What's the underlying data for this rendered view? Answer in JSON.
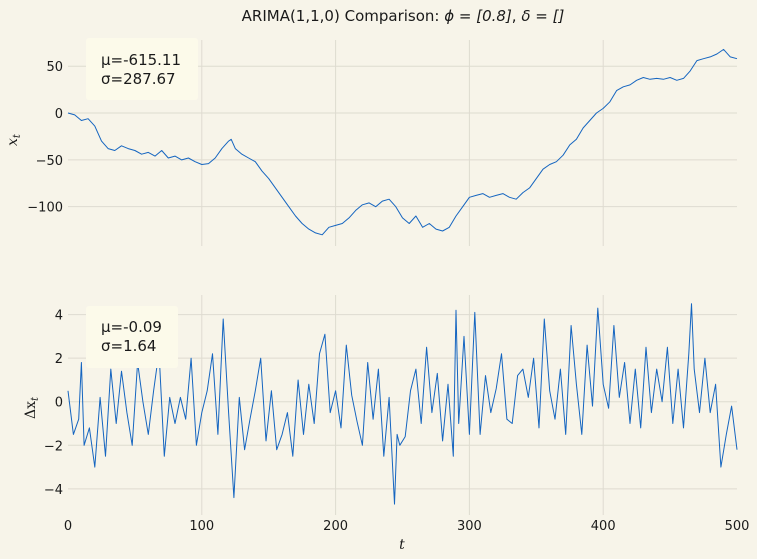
{
  "chart_data": [
    {
      "type": "line",
      "title_prefix": "ARIMA(1,1,0) Comparison: ",
      "title_phi": "ϕ = [0.8]",
      "title_sep": ", ",
      "title_delta": "δ = []",
      "ylabel_main": "x",
      "ylabel_sub": "t",
      "xlim": [
        0,
        500
      ],
      "ylim": [
        -142,
        78
      ],
      "yticks": [
        50,
        0,
        -50,
        -100
      ],
      "ytick_labels": [
        "50",
        "0",
        "−50",
        "−100"
      ],
      "grid": true,
      "stats_mean": "μ=-615.11",
      "stats_sd": "σ=287.67",
      "series": [
        {
          "color": "#1565c0",
          "x": [
            0,
            5,
            10,
            15,
            20,
            25,
            30,
            35,
            40,
            45,
            50,
            55,
            60,
            65,
            70,
            75,
            80,
            85,
            90,
            95,
            100,
            105,
            110,
            115,
            120,
            122,
            125,
            130,
            135,
            140,
            145,
            150,
            155,
            160,
            165,
            170,
            175,
            180,
            185,
            190,
            195,
            200,
            205,
            210,
            215,
            220,
            225,
            230,
            235,
            240,
            245,
            250,
            255,
            260,
            265,
            270,
            275,
            280,
            285,
            290,
            295,
            300,
            305,
            310,
            315,
            320,
            325,
            330,
            335,
            340,
            345,
            350,
            355,
            360,
            365,
            370,
            375,
            380,
            385,
            390,
            395,
            400,
            405,
            410,
            415,
            420,
            425,
            430,
            435,
            440,
            445,
            450,
            455,
            460,
            465,
            470,
            475,
            480,
            485,
            490,
            495,
            500
          ],
          "y": [
            0,
            -2,
            -8,
            -6,
            -14,
            -30,
            -38,
            -40,
            -35,
            -38,
            -40,
            -44,
            -42,
            -46,
            -40,
            -48,
            -46,
            -50,
            -48,
            -52,
            -55,
            -54,
            -48,
            -38,
            -30,
            -28,
            -38,
            -44,
            -48,
            -52,
            -62,
            -70,
            -80,
            -90,
            -100,
            -110,
            -118,
            -124,
            -128,
            -130,
            -122,
            -120,
            -118,
            -112,
            -104,
            -98,
            -96,
            -100,
            -94,
            -92,
            -100,
            -112,
            -118,
            -110,
            -122,
            -118,
            -124,
            -126,
            -122,
            -110,
            -100,
            -90,
            -88,
            -86,
            -90,
            -88,
            -86,
            -90,
            -92,
            -85,
            -80,
            -70,
            -60,
            -55,
            -52,
            -45,
            -34,
            -28,
            -16,
            -8,
            0,
            5,
            12,
            24,
            28,
            30,
            35,
            38,
            36,
            37,
            36,
            38,
            35,
            37,
            45,
            56,
            58,
            60,
            63,
            68,
            60,
            58
          ]
        }
      ]
    },
    {
      "type": "line",
      "xlabel": "t",
      "ylabel_prefix": "Δx",
      "ylabel_sub": "t",
      "xlim": [
        0,
        500
      ],
      "ylim": [
        -5.2,
        4.9
      ],
      "xticks": [
        0,
        100,
        200,
        300,
        400,
        500
      ],
      "xtick_labels": [
        "0",
        "100",
        "200",
        "300",
        "400",
        "500"
      ],
      "yticks": [
        4,
        2,
        0,
        -2,
        -4
      ],
      "ytick_labels": [
        "4",
        "2",
        "0",
        "−2",
        "−4"
      ],
      "grid": true,
      "stats_mean": "μ=-0.09",
      "stats_sd": "σ=1.64",
      "series": [
        {
          "color": "#1565c0",
          "x": [
            0,
            4,
            8,
            10,
            12,
            16,
            20,
            24,
            28,
            32,
            36,
            40,
            44,
            48,
            52,
            56,
            60,
            64,
            68,
            72,
            76,
            80,
            84,
            88,
            92,
            96,
            100,
            104,
            108,
            112,
            116,
            120,
            124,
            128,
            132,
            136,
            140,
            144,
            148,
            152,
            156,
            160,
            164,
            168,
            172,
            176,
            180,
            184,
            188,
            192,
            196,
            200,
            204,
            208,
            212,
            216,
            220,
            224,
            228,
            232,
            236,
            240,
            244,
            246,
            248,
            252,
            256,
            260,
            264,
            268,
            272,
            276,
            280,
            284,
            288,
            290,
            292,
            296,
            300,
            304,
            308,
            312,
            316,
            320,
            324,
            328,
            332,
            336,
            340,
            344,
            348,
            352,
            356,
            360,
            364,
            368,
            372,
            376,
            380,
            384,
            388,
            392,
            396,
            400,
            404,
            408,
            412,
            416,
            420,
            424,
            428,
            432,
            436,
            440,
            444,
            448,
            452,
            456,
            460,
            464,
            466,
            468,
            472,
            476,
            480,
            484,
            488,
            492,
            496,
            500
          ],
          "y": [
            0.5,
            -1.5,
            -0.8,
            1.8,
            -2.0,
            -1.2,
            -3.0,
            0.2,
            -2.5,
            1.5,
            -1.0,
            1.4,
            -0.5,
            -2.0,
            1.8,
            0.0,
            -1.5,
            0.5,
            2.3,
            -2.5,
            0.2,
            -1.0,
            0.2,
            -0.8,
            2.0,
            -2.0,
            -0.5,
            0.5,
            2.2,
            -1.5,
            3.8,
            -0.5,
            -4.4,
            0.2,
            -2.2,
            -0.8,
            0.5,
            2.0,
            -1.8,
            0.5,
            -2.2,
            -1.5,
            -0.5,
            -2.5,
            1.0,
            -1.5,
            0.8,
            -1.0,
            2.2,
            3.1,
            -0.5,
            0.5,
            -1.2,
            2.6,
            0.3,
            -0.9,
            -2.0,
            1.8,
            -0.8,
            1.5,
            -2.5,
            0.2,
            -4.7,
            -1.5,
            -2.0,
            -1.6,
            0.5,
            1.5,
            -1.0,
            2.5,
            -0.5,
            1.3,
            -1.8,
            0.8,
            -2.5,
            4.2,
            -1.0,
            3.0,
            -1.5,
            4.1,
            -1.5,
            1.2,
            -0.5,
            0.6,
            2.2,
            -0.8,
            -1.0,
            1.2,
            1.5,
            0.2,
            2.0,
            -1.2,
            3.8,
            0.5,
            -0.8,
            1.5,
            -1.5,
            3.5,
            0.8,
            -1.5,
            2.6,
            -0.2,
            4.3,
            0.8,
            -0.3,
            3.5,
            0.2,
            1.8,
            -1.0,
            1.5,
            -1.2,
            2.5,
            -0.5,
            1.5,
            0.0,
            2.5,
            -1.0,
            1.5,
            -1.2,
            2.2,
            4.5,
            1.5,
            -0.5,
            2.0,
            -0.5,
            0.8,
            -3.0,
            -1.5,
            -0.2,
            -2.2
          ]
        }
      ]
    }
  ]
}
